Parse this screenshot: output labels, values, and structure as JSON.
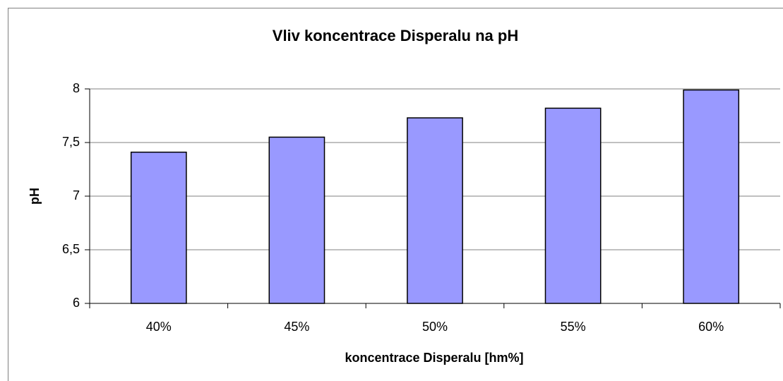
{
  "chart_data": {
    "type": "bar",
    "title": "Vliv koncentrace Disperalu na pH",
    "x_label": "koncentrace Disperalu [hm%]",
    "y_label": "pH",
    "categories": [
      "40%",
      "45%",
      "50%",
      "55%",
      "60%"
    ],
    "values": [
      7.41,
      7.55,
      7.73,
      7.82,
      7.99
    ],
    "color": "#9999ff",
    "ylim": [
      6,
      8
    ],
    "yticks": [
      6,
      {
        "value": 6.5,
        "label": "6,5"
      },
      7,
      {
        "value": 7.5,
        "label": "7,5"
      },
      8
    ],
    "grid": true
  }
}
